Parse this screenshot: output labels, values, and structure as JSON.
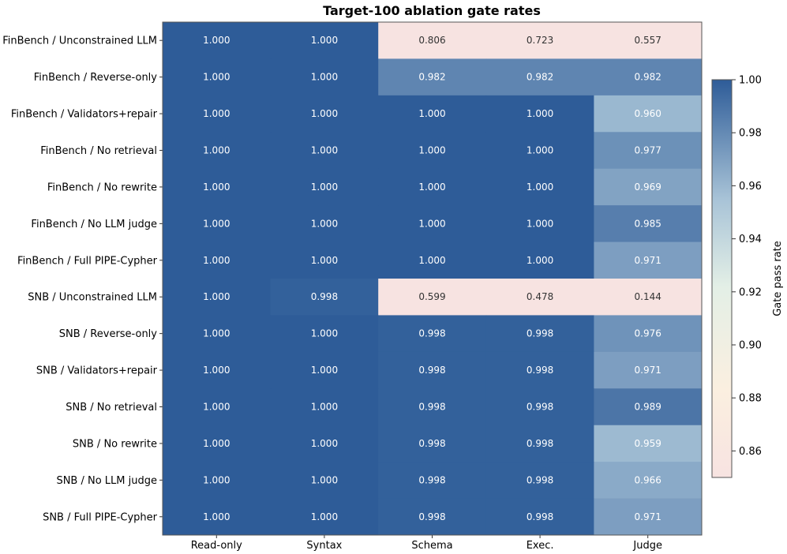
{
  "chart_data": {
    "type": "heatmap",
    "title": "Target-100 ablation gate rates",
    "xlabel": "",
    "ylabel": "",
    "columns": [
      "Read-only",
      "Syntax",
      "Schema",
      "Exec.",
      "Judge"
    ],
    "rows": [
      "FinBench / Unconstrained LLM",
      "FinBench / Reverse-only",
      "FinBench / Validators+repair",
      "FinBench / No retrieval",
      "FinBench / No rewrite",
      "FinBench / No LLM judge",
      "FinBench / Full PIPE-Cypher",
      "SNB / Unconstrained LLM",
      "SNB / Reverse-only",
      "SNB / Validators+repair",
      "SNB / No retrieval",
      "SNB / No rewrite",
      "SNB / No LLM judge",
      "SNB / Full PIPE-Cypher"
    ],
    "values": [
      [
        1.0,
        1.0,
        0.806,
        0.723,
        0.557
      ],
      [
        1.0,
        1.0,
        0.982,
        0.982,
        0.982
      ],
      [
        1.0,
        1.0,
        1.0,
        1.0,
        0.96
      ],
      [
        1.0,
        1.0,
        1.0,
        1.0,
        0.977
      ],
      [
        1.0,
        1.0,
        1.0,
        1.0,
        0.969
      ],
      [
        1.0,
        1.0,
        1.0,
        1.0,
        0.985
      ],
      [
        1.0,
        1.0,
        1.0,
        1.0,
        0.971
      ],
      [
        1.0,
        0.998,
        0.599,
        0.478,
        0.144
      ],
      [
        1.0,
        1.0,
        0.998,
        0.998,
        0.976
      ],
      [
        1.0,
        1.0,
        0.998,
        0.998,
        0.971
      ],
      [
        1.0,
        1.0,
        0.998,
        0.998,
        0.989
      ],
      [
        1.0,
        1.0,
        0.998,
        0.998,
        0.959
      ],
      [
        1.0,
        1.0,
        0.998,
        0.998,
        0.966
      ],
      [
        1.0,
        1.0,
        0.998,
        0.998,
        0.971
      ]
    ],
    "value_format": "0.000",
    "colorbar": {
      "label": "Gate pass rate",
      "vmin": 0.85,
      "vmax": 1.0,
      "ticks": [
        0.86,
        0.88,
        0.9,
        0.92,
        0.94,
        0.96,
        0.98,
        1.0
      ],
      "tick_labels": [
        "0.86",
        "0.88",
        "0.90",
        "0.92",
        "0.94",
        "0.96",
        "0.98",
        "1.00"
      ]
    },
    "colormap": {
      "stops": [
        {
          "v": 0.0,
          "color": "#f7e3e1"
        },
        {
          "v": 0.22,
          "color": "#fbefe0"
        },
        {
          "v": 0.48,
          "color": "#e3efe6"
        },
        {
          "v": 0.7,
          "color": "#a8c3d7"
        },
        {
          "v": 1.0,
          "color": "#2e5c98"
        }
      ],
      "dark_text_color": "#333333",
      "light_text_color": "#ffffff"
    },
    "grid": false
  }
}
